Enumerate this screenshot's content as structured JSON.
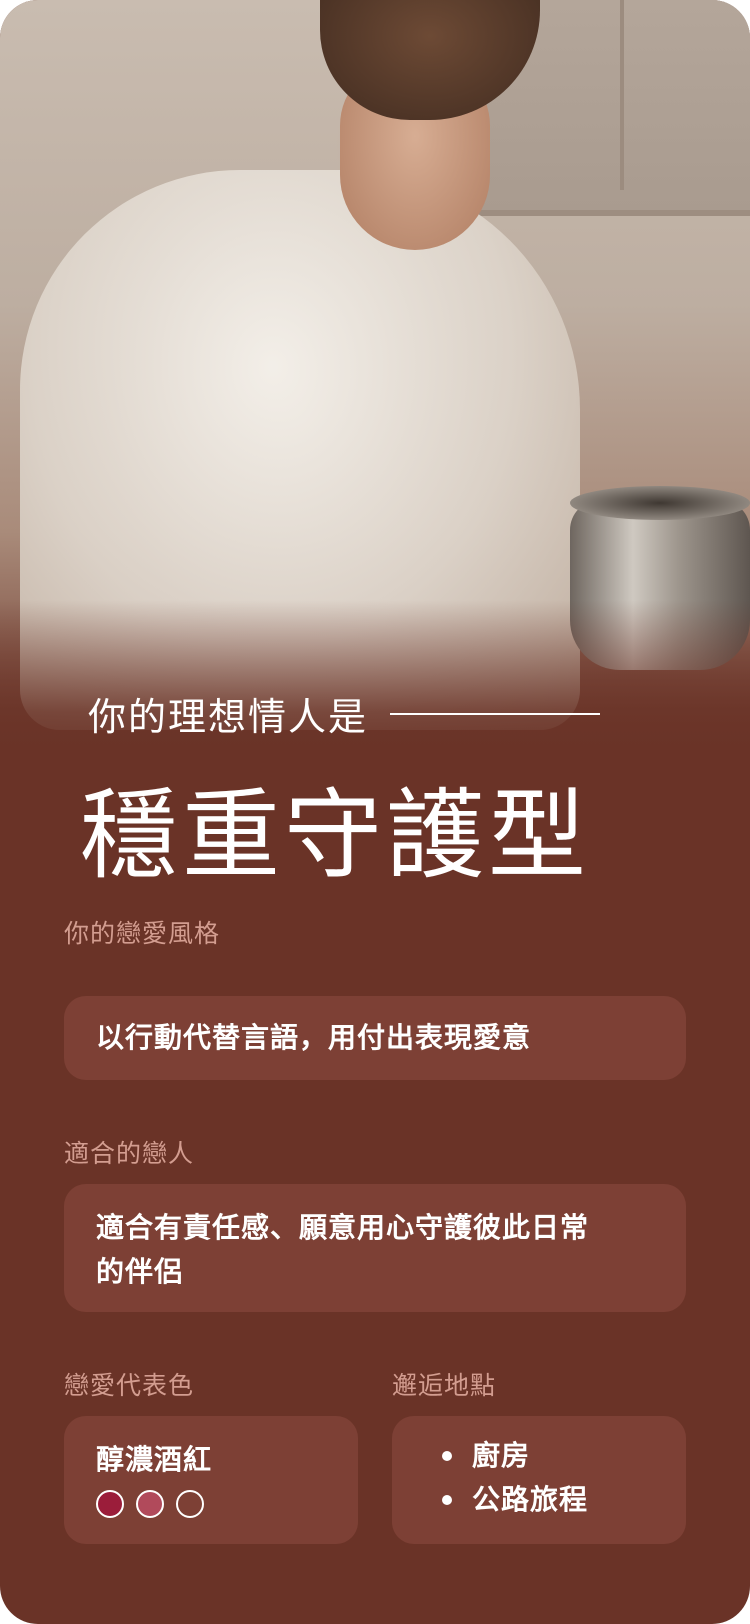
{
  "hero": {
    "subtitle": "你的理想情人是",
    "title": "穩重守護型"
  },
  "sections": {
    "love_style": {
      "label": "你的戀愛風格",
      "value": "以行動代替言語，用付出表現愛意"
    },
    "suitable_partner": {
      "label": "適合的戀人",
      "value_line1": "適合有責任感、願意用心守護彼此日常",
      "value_line2": "的伴侶"
    },
    "love_color": {
      "label": "戀愛代表色",
      "value": "醇濃酒紅",
      "swatches": [
        "#9b1d3a",
        "#b14a5b",
        "#7d4035"
      ]
    },
    "meeting_places": {
      "label": "邂逅地點",
      "items": [
        "廚房",
        "公路旅程"
      ]
    }
  },
  "colors": {
    "background": "#6a3327",
    "box": "#7d4035",
    "label": "#d39d90",
    "text": "#ffffff"
  }
}
